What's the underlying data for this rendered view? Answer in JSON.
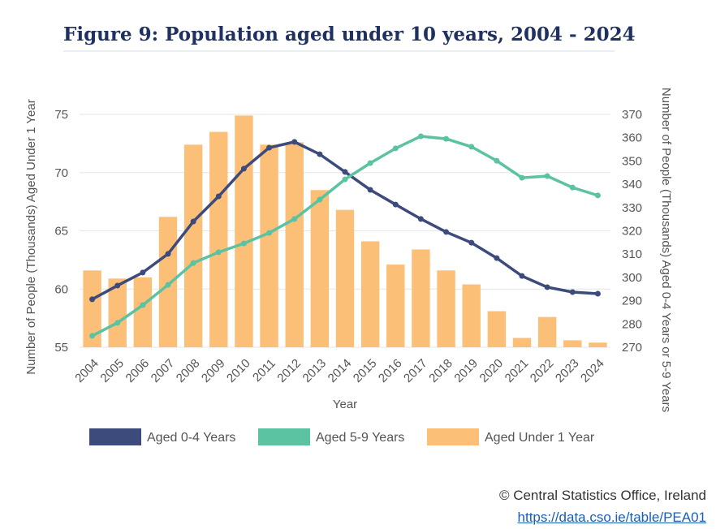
{
  "chart_data": {
    "type": "combo",
    "title": "Figure 9: Population aged under 10 years, 2004 - 2024",
    "xlabel": "Year",
    "ylabel": "Number of People (Thousands) Aged Under 1 Year",
    "y2label": "Number of People (Thousands) Aged 0-4 Years or 5-9 Years",
    "categories": [
      "2004",
      "2005",
      "2006",
      "2007",
      "2008",
      "2009",
      "2010",
      "2011",
      "2012",
      "2013",
      "2014",
      "2015",
      "2016",
      "2017",
      "2018",
      "2019",
      "2020",
      "2021",
      "2022",
      "2023",
      "2024"
    ],
    "ylim": [
      55,
      75
    ],
    "yticks": [
      55,
      60,
      65,
      70,
      75
    ],
    "y2lim": [
      270,
      370
    ],
    "y2ticks": [
      270,
      280,
      290,
      300,
      310,
      320,
      330,
      340,
      350,
      360,
      370
    ],
    "grid": true,
    "series": [
      {
        "name": "Aged 0-4 Years",
        "type": "line",
        "axis": "y2",
        "color": "#3d4b7c",
        "values": [
          290.6,
          296.5,
          302.1,
          310.1,
          324.0,
          334.8,
          346.7,
          355.7,
          358.2,
          352.9,
          345.3,
          337.6,
          331.3,
          325.1,
          319.5,
          314.9,
          308.3,
          300.6,
          295.8,
          293.7,
          293.0
        ]
      },
      {
        "name": "Aged 5-9 Years",
        "type": "line",
        "axis": "y2",
        "color": "#5bc2a2",
        "values": [
          274.9,
          280.5,
          288.1,
          296.8,
          306.2,
          310.8,
          314.6,
          319.1,
          325.1,
          333.4,
          342.1,
          349.1,
          355.4,
          360.6,
          359.5,
          356.1,
          350.1,
          342.8,
          343.5,
          338.6,
          335.2
        ]
      },
      {
        "name": "Aged Under 1 Year",
        "type": "bar",
        "axis": "y",
        "color": "#fbbf77",
        "values": [
          61.6,
          60.9,
          61.0,
          66.2,
          72.4,
          73.5,
          74.9,
          72.4,
          72.6,
          68.5,
          66.8,
          64.1,
          62.1,
          63.4,
          61.6,
          60.4,
          58.1,
          55.8,
          57.6,
          55.6,
          55.4
        ]
      }
    ]
  },
  "footer": {
    "source": "© Central Statistics Office, Ireland",
    "link": "https://data.cso.ie/table/PEA01"
  }
}
